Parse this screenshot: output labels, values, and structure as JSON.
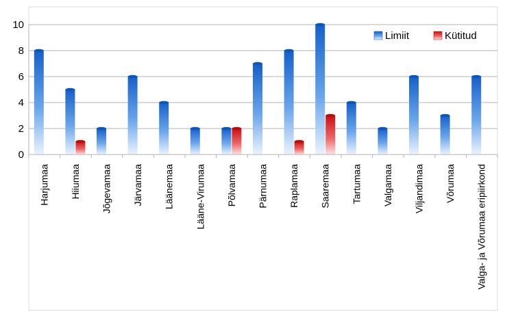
{
  "chart_data": {
    "type": "bar",
    "title": "",
    "xlabel": "",
    "ylabel": "",
    "ylim": [
      0,
      10
    ],
    "yticks": [
      0,
      2,
      4,
      6,
      8,
      10
    ],
    "grid": "horizontal",
    "legend_position": "top-right",
    "categories": [
      "Harjumaa",
      "Hiiumaa",
      "Jõgevamaa",
      "Järvamaa",
      "Läänemaa",
      "Lääne-Virumaa",
      "Põlvamaa",
      "Pärnumaa",
      "Raplamaa",
      "Saaremaa",
      "Tartumaa",
      "Valgamaa",
      "Viljandimaa",
      "Võrumaa",
      "Valga- ja Võrumaa eripiirkond"
    ],
    "series": [
      {
        "name": "Limiit",
        "color": "#1f6fd6",
        "values": [
          8,
          5,
          2,
          6,
          4,
          2,
          2,
          7,
          8,
          10,
          4,
          2,
          6,
          3,
          6
        ]
      },
      {
        "name": "Kütitud",
        "color": "#d62020",
        "values": [
          0,
          1,
          0,
          0,
          0,
          0,
          2,
          0,
          1,
          3,
          0,
          0,
          0,
          0,
          0
        ]
      }
    ]
  }
}
